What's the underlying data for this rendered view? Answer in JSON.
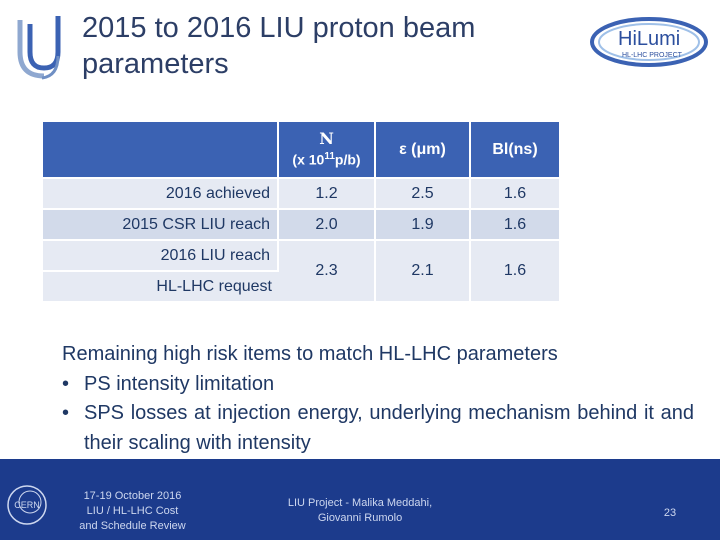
{
  "title": "2015 to 2016 LIU proton beam parameters",
  "logo": {
    "hilumi_text": "HiLumi",
    "hilumi_sub": "HL-LHC PROJECT",
    "cern_text": "CERN"
  },
  "table": {
    "headers": {
      "n_label": "N",
      "n_unit_prefix": "(x 10",
      "n_unit_exp": "11",
      "n_unit_suffix": "p/b)",
      "eps": "ε (μm)",
      "bl": "Bl(ns)"
    },
    "rows": [
      {
        "label": "2016 achieved",
        "n": "1.2",
        "eps": "2.5",
        "bl": "1.6"
      },
      {
        "label": "2015 CSR LIU reach",
        "n": "2.0",
        "eps": "1.9",
        "bl": "1.6"
      }
    ],
    "merged": {
      "label1": "2016 LIU reach",
      "label2": "HL-LHC request",
      "n": "2.3",
      "eps": "2.1",
      "bl": "1.6"
    }
  },
  "body": {
    "heading": "Remaining high risk items to match HL-LHC parameters",
    "bullets": [
      "PS intensity limitation",
      "SPS losses at injection energy, underlying mechanism behind it and their scaling with intensity"
    ],
    "bullet_char": "•"
  },
  "footer": {
    "date_line1": "17-19 October 2016",
    "date_line2": "LIU / HL-LHC Cost",
    "date_line3": "and Schedule Review",
    "proj_line1": "LIU Project - Malika Meddahi,",
    "proj_line2": "Giovanni Rumolo",
    "page": "23"
  },
  "colors": {
    "table_header": "#3b62b3",
    "footer": "#1c3b8c",
    "text": "#1f3864"
  }
}
